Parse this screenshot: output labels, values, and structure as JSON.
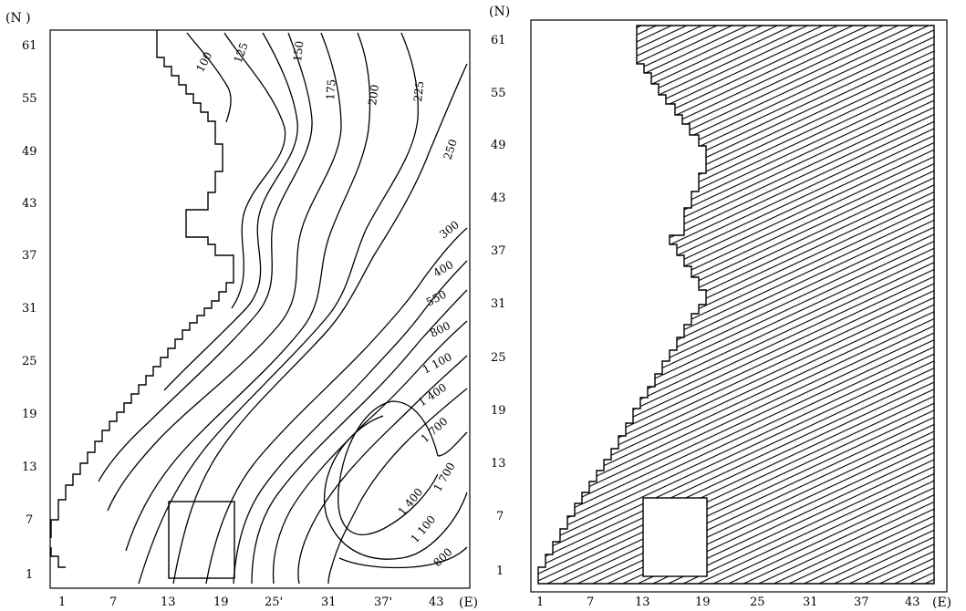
{
  "left_map": {
    "y_ticks": [
      "61",
      "55",
      "49",
      "43",
      "37",
      "31",
      "25",
      "19",
      "13",
      "7",
      "1"
    ],
    "x_ticks": [
      "1",
      "7",
      "13",
      "19",
      "25'",
      "31",
      "37'",
      "43"
    ],
    "y_axis_label": "(N )",
    "x_axis_label": "(E)",
    "contour_labels": [
      "100",
      "125",
      "150",
      "175",
      "200",
      "225",
      "250",
      "300",
      "400",
      "550",
      "800",
      "1 100",
      "1 400",
      "1 700",
      "1 700",
      "1 400",
      "1 100",
      "800"
    ]
  },
  "right_map": {
    "y_ticks": [
      "61",
      "55",
      "49",
      "43",
      "37",
      "31",
      "25",
      "19",
      "13",
      "7",
      "1"
    ],
    "x_ticks": [
      "1",
      "7",
      "13",
      "19",
      "25",
      "31",
      "37",
      "43"
    ],
    "y_axis_label": "(N)",
    "x_axis_label": "(E)"
  },
  "colors": {
    "ink": "#000000",
    "paper": "#ffffff"
  }
}
